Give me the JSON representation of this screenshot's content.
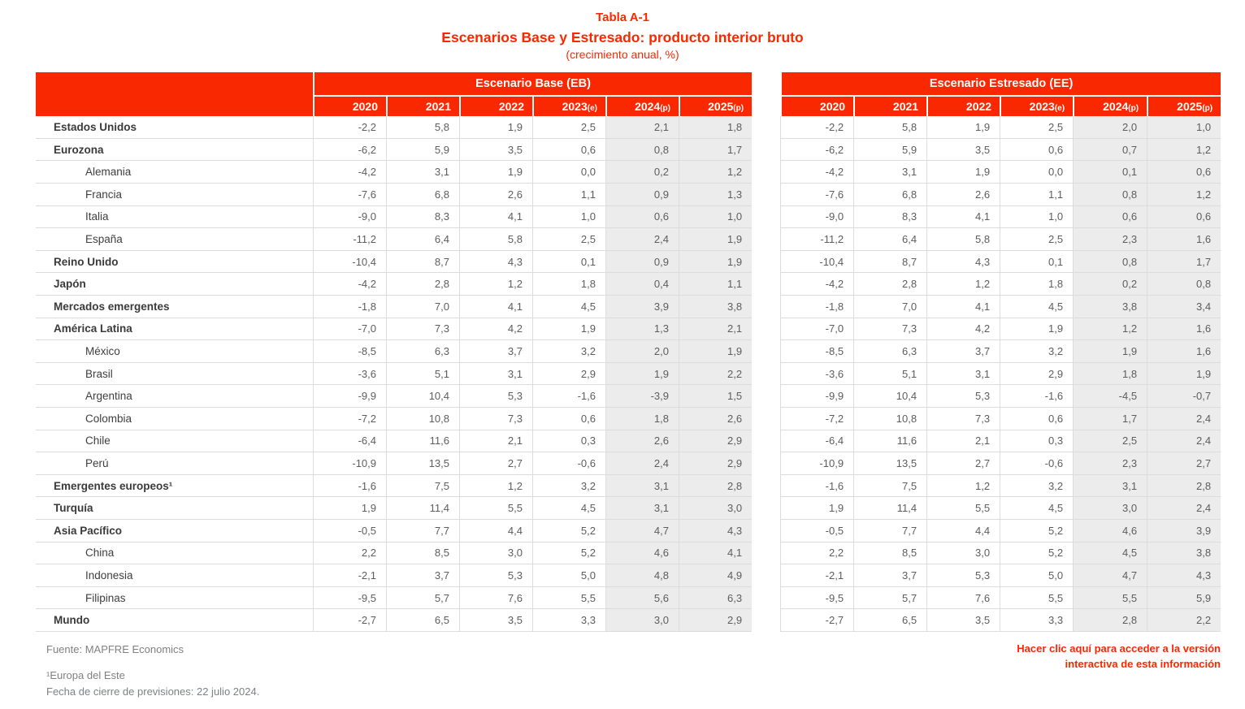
{
  "title": {
    "label": "Tabla A-1",
    "heading": "Escenarios Base y Estresado: producto interior bruto",
    "subtitle": "(crecimiento anual, %)"
  },
  "colors": {
    "brand_red": "#fa2800",
    "shaded_column_bg": "#ececec",
    "grid_line": "#dcdcdc",
    "number_text": "#5d5d5d"
  },
  "sections": [
    {
      "title": "Escenario Base (EB)"
    },
    {
      "title": "Escenario Estresado (EE)"
    }
  ],
  "years": [
    {
      "y": "2020",
      "s": ""
    },
    {
      "y": "2021",
      "s": ""
    },
    {
      "y": "2022",
      "s": ""
    },
    {
      "y": "2023",
      "s": "(e)"
    },
    {
      "y": "2024",
      "s": "(p)"
    },
    {
      "y": "2025",
      "s": "(p)"
    }
  ],
  "rows": [
    {
      "label": "Estados Unidos",
      "bold": true,
      "indent": false,
      "eb": [
        "-2,2",
        "5,8",
        "1,9",
        "2,5",
        "2,1",
        "1,8"
      ],
      "ee": [
        "-2,2",
        "5,8",
        "1,9",
        "2,5",
        "2,0",
        "1,0"
      ]
    },
    {
      "label": "Eurozona",
      "bold": true,
      "indent": false,
      "eb": [
        "-6,2",
        "5,9",
        "3,5",
        "0,6",
        "0,8",
        "1,7"
      ],
      "ee": [
        "-6,2",
        "5,9",
        "3,5",
        "0,6",
        "0,7",
        "1,2"
      ]
    },
    {
      "label": "Alemania",
      "bold": false,
      "indent": true,
      "eb": [
        "-4,2",
        "3,1",
        "1,9",
        "0,0",
        "0,2",
        "1,2"
      ],
      "ee": [
        "-4,2",
        "3,1",
        "1,9",
        "0,0",
        "0,1",
        "0,6"
      ]
    },
    {
      "label": "Francia",
      "bold": false,
      "indent": true,
      "eb": [
        "-7,6",
        "6,8",
        "2,6",
        "1,1",
        "0,9",
        "1,3"
      ],
      "ee": [
        "-7,6",
        "6,8",
        "2,6",
        "1,1",
        "0,8",
        "1,2"
      ]
    },
    {
      "label": "Italia",
      "bold": false,
      "indent": true,
      "eb": [
        "-9,0",
        "8,3",
        "4,1",
        "1,0",
        "0,6",
        "1,0"
      ],
      "ee": [
        "-9,0",
        "8,3",
        "4,1",
        "1,0",
        "0,6",
        "0,6"
      ]
    },
    {
      "label": "España",
      "bold": false,
      "indent": true,
      "eb": [
        "-11,2",
        "6,4",
        "5,8",
        "2,5",
        "2,4",
        "1,9"
      ],
      "ee": [
        "-11,2",
        "6,4",
        "5,8",
        "2,5",
        "2,3",
        "1,6"
      ]
    },
    {
      "label": "Reino Unido",
      "bold": true,
      "indent": false,
      "eb": [
        "-10,4",
        "8,7",
        "4,3",
        "0,1",
        "0,9",
        "1,9"
      ],
      "ee": [
        "-10,4",
        "8,7",
        "4,3",
        "0,1",
        "0,8",
        "1,7"
      ]
    },
    {
      "label": "Japón",
      "bold": true,
      "indent": false,
      "eb": [
        "-4,2",
        "2,8",
        "1,2",
        "1,8",
        "0,4",
        "1,1"
      ],
      "ee": [
        "-4,2",
        "2,8",
        "1,2",
        "1,8",
        "0,2",
        "0,8"
      ]
    },
    {
      "label": "Mercados emergentes",
      "bold": true,
      "indent": false,
      "eb": [
        "-1,8",
        "7,0",
        "4,1",
        "4,5",
        "3,9",
        "3,8"
      ],
      "ee": [
        "-1,8",
        "7,0",
        "4,1",
        "4,5",
        "3,8",
        "3,4"
      ]
    },
    {
      "label": "América Latina",
      "bold": true,
      "indent": false,
      "eb": [
        "-7,0",
        "7,3",
        "4,2",
        "1,9",
        "1,3",
        "2,1"
      ],
      "ee": [
        "-7,0",
        "7,3",
        "4,2",
        "1,9",
        "1,2",
        "1,6"
      ]
    },
    {
      "label": "México",
      "bold": false,
      "indent": true,
      "eb": [
        "-8,5",
        "6,3",
        "3,7",
        "3,2",
        "2,0",
        "1,9"
      ],
      "ee": [
        "-8,5",
        "6,3",
        "3,7",
        "3,2",
        "1,9",
        "1,6"
      ]
    },
    {
      "label": "Brasil",
      "bold": false,
      "indent": true,
      "eb": [
        "-3,6",
        "5,1",
        "3,1",
        "2,9",
        "1,9",
        "2,2"
      ],
      "ee": [
        "-3,6",
        "5,1",
        "3,1",
        "2,9",
        "1,8",
        "1,9"
      ]
    },
    {
      "label": "Argentina",
      "bold": false,
      "indent": true,
      "eb": [
        "-9,9",
        "10,4",
        "5,3",
        "-1,6",
        "-3,9",
        "1,5"
      ],
      "ee": [
        "-9,9",
        "10,4",
        "5,3",
        "-1,6",
        "-4,5",
        "-0,7"
      ]
    },
    {
      "label": "Colombia",
      "bold": false,
      "indent": true,
      "eb": [
        "-7,2",
        "10,8",
        "7,3",
        "0,6",
        "1,8",
        "2,6"
      ],
      "ee": [
        "-7,2",
        "10,8",
        "7,3",
        "0,6",
        "1,7",
        "2,4"
      ]
    },
    {
      "label": "Chile",
      "bold": false,
      "indent": true,
      "eb": [
        "-6,4",
        "11,6",
        "2,1",
        "0,3",
        "2,6",
        "2,9"
      ],
      "ee": [
        "-6,4",
        "11,6",
        "2,1",
        "0,3",
        "2,5",
        "2,4"
      ]
    },
    {
      "label": "Perú",
      "bold": false,
      "indent": true,
      "eb": [
        "-10,9",
        "13,5",
        "2,7",
        "-0,6",
        "2,4",
        "2,9"
      ],
      "ee": [
        "-10,9",
        "13,5",
        "2,7",
        "-0,6",
        "2,3",
        "2,7"
      ]
    },
    {
      "label": "Emergentes europeos¹",
      "bold": true,
      "indent": false,
      "eb": [
        "-1,6",
        "7,5",
        "1,2",
        "3,2",
        "3,1",
        "2,8"
      ],
      "ee": [
        "-1,6",
        "7,5",
        "1,2",
        "3,2",
        "3,1",
        "2,8"
      ]
    },
    {
      "label": "Turquía",
      "bold": true,
      "indent": false,
      "eb": [
        "1,9",
        "11,4",
        "5,5",
        "4,5",
        "3,1",
        "3,0"
      ],
      "ee": [
        "1,9",
        "11,4",
        "5,5",
        "4,5",
        "3,0",
        "2,4"
      ]
    },
    {
      "label": "Asia Pacífico",
      "bold": true,
      "indent": false,
      "eb": [
        "-0,5",
        "7,7",
        "4,4",
        "5,2",
        "4,7",
        "4,3"
      ],
      "ee": [
        "-0,5",
        "7,7",
        "4,4",
        "5,2",
        "4,6",
        "3,9"
      ]
    },
    {
      "label": "China",
      "bold": false,
      "indent": true,
      "eb": [
        "2,2",
        "8,5",
        "3,0",
        "5,2",
        "4,6",
        "4,1"
      ],
      "ee": [
        "2,2",
        "8,5",
        "3,0",
        "5,2",
        "4,5",
        "3,8"
      ]
    },
    {
      "label": "Indonesia",
      "bold": false,
      "indent": true,
      "eb": [
        "-2,1",
        "3,7",
        "5,3",
        "5,0",
        "4,8",
        "4,9"
      ],
      "ee": [
        "-2,1",
        "3,7",
        "5,3",
        "5,0",
        "4,7",
        "4,3"
      ]
    },
    {
      "label": "Filipinas",
      "bold": false,
      "indent": true,
      "eb": [
        "-9,5",
        "5,7",
        "7,6",
        "5,5",
        "5,6",
        "6,3"
      ],
      "ee": [
        "-9,5",
        "5,7",
        "7,6",
        "5,5",
        "5,5",
        "5,9"
      ]
    },
    {
      "label": "Mundo",
      "bold": true,
      "indent": false,
      "eb": [
        "-2,7",
        "6,5",
        "3,5",
        "3,3",
        "3,0",
        "2,9"
      ],
      "ee": [
        "-2,7",
        "6,5",
        "3,5",
        "3,3",
        "2,8",
        "2,2"
      ]
    }
  ],
  "footer": {
    "source": "Fuente: MAPFRE Economics",
    "note1": "¹Europa del Este",
    "note2": "Fecha de cierre de previsiones: 22 julio 2024.",
    "link_line1": "Hacer clic aquí para acceder a la versión",
    "link_line2": "interactiva de esta información"
  }
}
